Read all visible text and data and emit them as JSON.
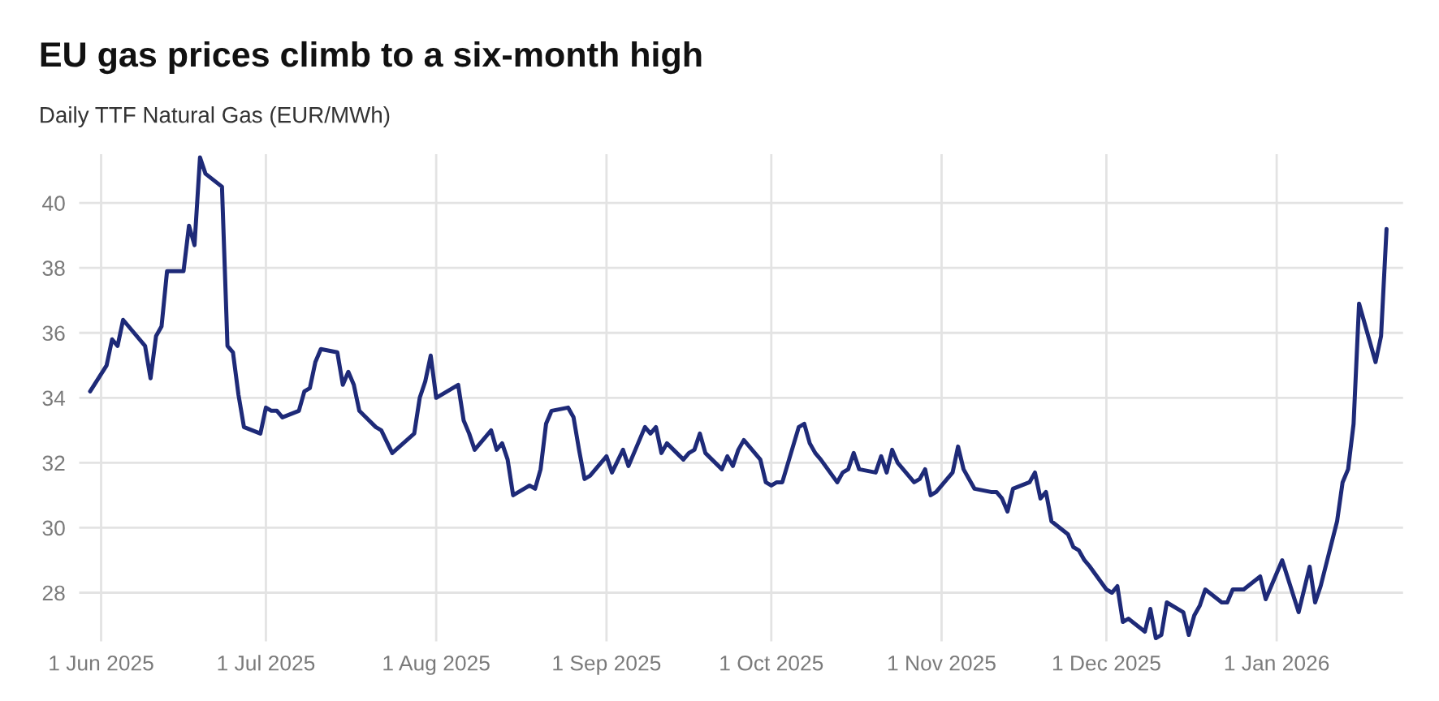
{
  "chart_data": {
    "type": "line",
    "title": "EU gas prices climb to a six-month high",
    "subtitle": "Daily TTF Natural Gas (EUR/MWh)",
    "x": [
      "2025-05-30",
      "2025-06-02",
      "2025-06-03",
      "2025-06-04",
      "2025-06-05",
      "2025-06-06",
      "2025-06-09",
      "2025-06-10",
      "2025-06-11",
      "2025-06-12",
      "2025-06-13",
      "2025-06-16",
      "2025-06-17",
      "2025-06-18",
      "2025-06-19",
      "2025-06-20",
      "2025-06-23",
      "2025-06-24",
      "2025-06-25",
      "2025-06-26",
      "2025-06-27",
      "2025-06-30",
      "2025-07-01",
      "2025-07-02",
      "2025-07-03",
      "2025-07-04",
      "2025-07-07",
      "2025-07-08",
      "2025-07-09",
      "2025-07-10",
      "2025-07-11",
      "2025-07-14",
      "2025-07-15",
      "2025-07-16",
      "2025-07-17",
      "2025-07-18",
      "2025-07-21",
      "2025-07-22",
      "2025-07-24",
      "2025-07-28",
      "2025-07-29",
      "2025-07-30",
      "2025-07-31",
      "2025-08-01",
      "2025-08-05",
      "2025-08-06",
      "2025-08-07",
      "2025-08-08",
      "2025-08-11",
      "2025-08-12",
      "2025-08-13",
      "2025-08-14",
      "2025-08-15",
      "2025-08-18",
      "2025-08-19",
      "2025-08-20",
      "2025-08-21",
      "2025-08-22",
      "2025-08-25",
      "2025-08-26",
      "2025-08-27",
      "2025-08-28",
      "2025-08-29",
      "2025-09-01",
      "2025-09-02",
      "2025-09-04",
      "2025-09-05",
      "2025-09-08",
      "2025-09-09",
      "2025-09-10",
      "2025-09-11",
      "2025-09-12",
      "2025-09-15",
      "2025-09-16",
      "2025-09-17",
      "2025-09-18",
      "2025-09-19",
      "2025-09-22",
      "2025-09-23",
      "2025-09-24",
      "2025-09-25",
      "2025-09-26",
      "2025-09-29",
      "2025-09-30",
      "2025-10-01",
      "2025-10-02",
      "2025-10-03",
      "2025-10-06",
      "2025-10-07",
      "2025-10-08",
      "2025-10-09",
      "2025-10-10",
      "2025-10-13",
      "2025-10-14",
      "2025-10-15",
      "2025-10-16",
      "2025-10-17",
      "2025-10-20",
      "2025-10-21",
      "2025-10-22",
      "2025-10-23",
      "2025-10-24",
      "2025-10-27",
      "2025-10-28",
      "2025-10-29",
      "2025-10-30",
      "2025-10-31",
      "2025-11-03",
      "2025-11-04",
      "2025-11-05",
      "2025-11-06",
      "2025-11-07",
      "2025-11-10",
      "2025-11-11",
      "2025-11-12",
      "2025-11-13",
      "2025-11-14",
      "2025-11-17",
      "2025-11-18",
      "2025-11-19",
      "2025-11-20",
      "2025-11-21",
      "2025-11-24",
      "2025-11-25",
      "2025-11-26",
      "2025-11-27",
      "2025-11-28",
      "2025-12-01",
      "2025-12-02",
      "2025-12-03",
      "2025-12-04",
      "2025-12-05",
      "2025-12-08",
      "2025-12-09",
      "2025-12-10",
      "2025-12-11",
      "2025-12-12",
      "2025-12-15",
      "2025-12-16",
      "2025-12-17",
      "2025-12-18",
      "2025-12-19",
      "2025-12-22",
      "2025-12-23",
      "2025-12-24",
      "2025-12-26",
      "2025-12-29",
      "2025-12-30",
      "2026-01-02",
      "2026-01-05",
      "2026-01-07",
      "2026-01-08",
      "2026-01-09",
      "2026-01-12",
      "2026-01-13",
      "2026-01-14",
      "2026-01-15",
      "2026-01-16",
      "2026-01-19",
      "2026-01-20",
      "2026-01-21"
    ],
    "series": [
      {
        "color": "#1e2a78",
        "values": [
          34.2,
          35.0,
          35.8,
          35.6,
          36.4,
          36.2,
          35.6,
          34.6,
          35.9,
          36.2,
          37.9,
          37.9,
          39.3,
          38.7,
          41.4,
          40.9,
          40.5,
          35.6,
          35.4,
          34.1,
          33.1,
          32.9,
          33.7,
          33.6,
          33.6,
          33.4,
          33.6,
          34.2,
          34.3,
          35.1,
          35.5,
          35.4,
          34.4,
          34.8,
          34.4,
          33.6,
          33.1,
          33.0,
          32.3,
          32.9,
          34.0,
          34.5,
          35.3,
          34.0,
          34.4,
          33.3,
          32.9,
          32.4,
          33.0,
          32.4,
          32.6,
          32.1,
          31.0,
          31.3,
          31.2,
          31.8,
          33.2,
          33.6,
          33.7,
          33.4,
          32.4,
          31.5,
          31.6,
          32.2,
          31.7,
          32.4,
          31.9,
          33.1,
          32.9,
          33.1,
          32.3,
          32.6,
          32.1,
          32.3,
          32.4,
          32.9,
          32.3,
          31.8,
          32.2,
          31.9,
          32.4,
          32.7,
          32.1,
          31.4,
          31.3,
          31.4,
          31.4,
          33.1,
          33.2,
          32.6,
          32.3,
          32.1,
          31.4,
          31.7,
          31.8,
          32.3,
          31.8,
          31.7,
          32.2,
          31.7,
          32.4,
          32.0,
          31.4,
          31.5,
          31.8,
          31.0,
          31.1,
          31.7,
          32.5,
          31.8,
          31.5,
          31.2,
          31.1,
          31.1,
          30.9,
          30.5,
          31.2,
          31.4,
          31.7,
          30.9,
          31.1,
          30.2,
          29.8,
          29.4,
          29.3,
          29.0,
          28.8,
          28.1,
          28.0,
          28.2,
          27.1,
          27.2,
          26.8,
          27.5,
          26.6,
          26.7,
          27.7,
          27.4,
          26.7,
          27.3,
          27.6,
          28.1,
          27.7,
          27.7,
          28.1,
          28.1,
          28.5,
          27.8,
          29.0,
          27.4,
          28.8,
          27.7,
          28.2,
          30.2,
          31.4,
          31.8,
          33.2,
          36.9,
          35.1,
          35.9,
          39.2
        ]
      }
    ],
    "xlim": [
      "2025-05-28",
      "2026-01-24"
    ],
    "ylim": [
      26.5,
      41.5
    ],
    "xticks": [
      {
        "value": "2025-06-01",
        "label": "1 Jun 2025"
      },
      {
        "value": "2025-07-01",
        "label": "1 Jul 2025"
      },
      {
        "value": "2025-08-01",
        "label": "1 Aug 2025"
      },
      {
        "value": "2025-09-01",
        "label": "1 Sep 2025"
      },
      {
        "value": "2025-10-01",
        "label": "1 Oct 2025"
      },
      {
        "value": "2025-11-01",
        "label": "1 Nov 2025"
      },
      {
        "value": "2025-12-01",
        "label": "1 Dec 2025"
      },
      {
        "value": "2026-01-01",
        "label": "1 Jan 2026"
      }
    ],
    "yticks": [
      28,
      30,
      32,
      34,
      36,
      38,
      40
    ],
    "grid": true,
    "marker": "none",
    "line_style": "solid"
  }
}
